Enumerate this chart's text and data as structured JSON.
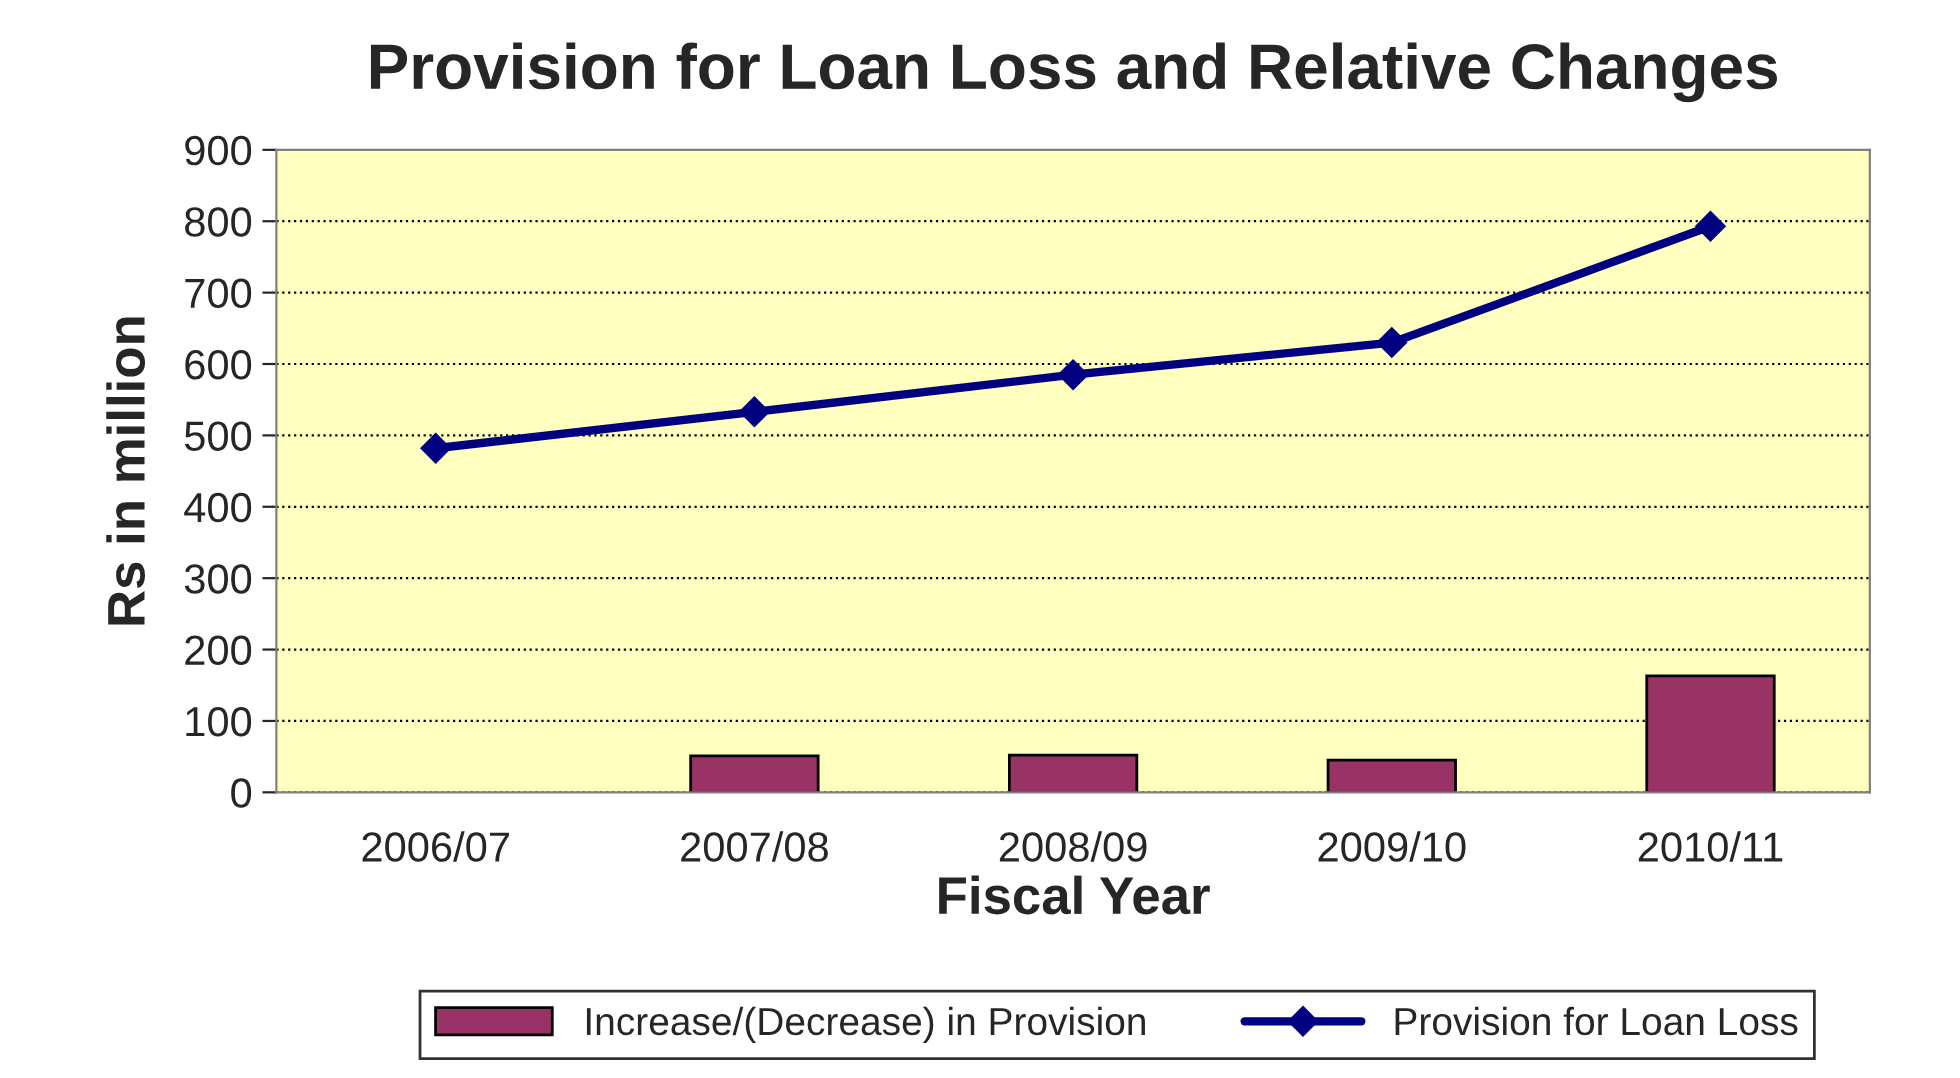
{
  "chart_data": {
    "type": "bar",
    "title": "Provision for Loan Loss and Relative Changes",
    "xlabel": "Fiscal Year",
    "ylabel": "Rs in million",
    "categories": [
      "2006/07",
      "2007/08",
      "2008/09",
      "2009/10",
      "2010/11"
    ],
    "series": [
      {
        "name": "Increase/(Decrease) in Provision",
        "color": "#993366",
        "values": [
          null,
          51,
          52,
          45,
          163
        ]
      },
      {
        "name": "Provision for Loan Loss",
        "type": "line",
        "color": "#000080",
        "marker": "diamond",
        "values": [
          482,
          533,
          585,
          630,
          793
        ]
      }
    ],
    "ylim": [
      0,
      900
    ],
    "yticks": [
      0,
      100,
      200,
      300,
      400,
      500,
      600,
      700,
      800,
      900
    ],
    "grid": "y",
    "legend": "bottom"
  }
}
